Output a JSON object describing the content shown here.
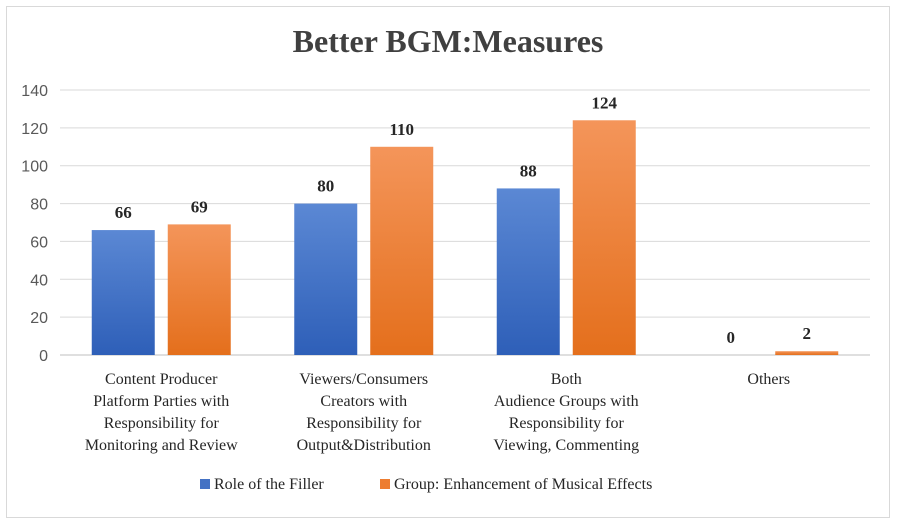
{
  "chart_data": {
    "type": "bar",
    "title": "Better BGM:Measures",
    "categories": [
      [
        "Content Producer",
        "Platform Parties with",
        "Responsibility for",
        "Monitoring and Review"
      ],
      [
        "Viewers/Consumers",
        "Creators with",
        "Responsibility for",
        "Output&Distribution"
      ],
      [
        "Both",
        "Audience Groups with",
        "Responsibility for",
        "Viewing, Commenting"
      ],
      [
        "Others"
      ]
    ],
    "series": [
      {
        "name": "Role of the Filler",
        "values": [
          66,
          80,
          88,
          0
        ],
        "color": "#4472c4"
      },
      {
        "name": "Group: Enhancement of Musical Effects",
        "values": [
          69,
          110,
          124,
          2
        ],
        "color": "#ed7d31"
      }
    ],
    "ylim": [
      0,
      140
    ],
    "yticks": [
      0,
      20,
      40,
      60,
      80,
      100,
      120,
      140
    ],
    "grid": true,
    "legend": "bottom"
  }
}
